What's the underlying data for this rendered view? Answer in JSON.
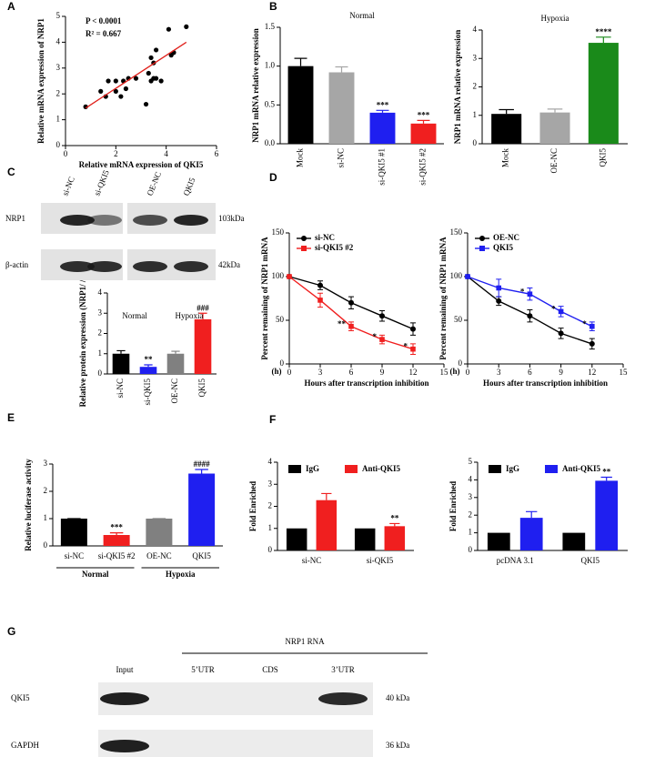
{
  "chart_data": [
    {
      "type": "scatter",
      "panel": "A",
      "xlabel": "Relative mRNA expression  of QKI5",
      "ylabel": "Relative mRNA expression of NRP1",
      "annotations": [
        "P < 0.0001",
        "R² = 0.667"
      ],
      "x": [
        0.8,
        1.4,
        1.6,
        1.7,
        2.0,
        2.0,
        2.2,
        2.3,
        2.4,
        2.5,
        2.8,
        3.2,
        3.3,
        3.4,
        3.5,
        3.5,
        3.6,
        3.8,
        4.1,
        4.2,
        4.3,
        4.8,
        3.6,
        3.4
      ],
      "values": [
        1.5,
        2.1,
        1.9,
        2.5,
        2.5,
        2.1,
        1.9,
        2.5,
        2.2,
        2.6,
        2.6,
        1.6,
        2.8,
        3.4,
        3.2,
        2.6,
        3.7,
        2.5,
        4.5,
        3.5,
        3.6,
        4.6,
        2.6,
        2.5
      ],
      "color": "#000000",
      "fit": {
        "x": [
          0.8,
          4.8
        ],
        "values": [
          1.45,
          4.0
        ],
        "color": "#e0201b"
      },
      "xlim": [
        0,
        6
      ],
      "xticks": [
        0,
        2,
        4,
        6
      ],
      "ylim": [
        0,
        5
      ],
      "yticks": [
        0,
        1,
        2,
        3,
        4,
        5
      ]
    },
    {
      "type": "bar",
      "panel": "B",
      "title": "Normal",
      "ylabel": "NRP1 mRNA relative expression",
      "rotate_labels": true,
      "categories": [
        "Mock",
        "si-NC",
        "si-QKI5 #1",
        "si-QKI5 #2"
      ],
      "values": [
        1.0,
        0.92,
        0.4,
        0.26
      ],
      "errors": [
        0.1,
        0.07,
        0.03,
        0.04
      ],
      "colors": [
        "#000000",
        "#a6a6a6",
        "#1f1ff0",
        "#f01f1f"
      ],
      "significance": [
        null,
        null,
        "***",
        "***"
      ],
      "ylim": [
        0,
        1.5
      ],
      "yticks": [
        {
          "value": 0,
          "label": "0.0"
        },
        0.5,
        {
          "value": 1,
          "label": "1.0"
        },
        1.5
      ]
    },
    {
      "type": "bar",
      "title": "Hypoxia",
      "ylabel": "NRP1 mRNA relative expression",
      "rotate_labels": true,
      "categories": [
        "Mock",
        "OE-NC",
        "QKI5"
      ],
      "values": [
        1.05,
        1.1,
        3.55
      ],
      "errors": [
        0.15,
        0.12,
        0.2
      ],
      "colors": [
        "#000000",
        "#a6a6a6",
        "#1a8a1a"
      ],
      "significance": [
        null,
        null,
        "****"
      ],
      "ylim": [
        0,
        4
      ],
      "yticks": [
        0,
        1,
        2,
        3,
        4
      ]
    },
    {
      "type": "bar",
      "ylabel": "Relative protein expression (NRP1/ /actin)",
      "rotate_labels": true,
      "categories": [
        "si-NC",
        "si-QKI5",
        "OE-NC",
        "QKI5"
      ],
      "values": [
        1.0,
        0.35,
        1.0,
        2.7
      ],
      "errors": [
        0.15,
        0.1,
        0.12,
        0.3
      ],
      "colors": [
        "#000000",
        "#1f1ff0",
        "#808080",
        "#f01f1f"
      ],
      "significance": [
        null,
        "**",
        null,
        "###"
      ],
      "groups": [
        "Normal",
        "Hypoxia"
      ],
      "ylim": [
        0,
        4
      ],
      "yticks": [
        0,
        1,
        2,
        3,
        4
      ]
    },
    {
      "type": "line",
      "panel": "D",
      "xlabel": "Hours after transcription inhibition",
      "ylabel": "Percent remaining of NRP1 mRNA",
      "x_unit": "(h)",
      "x": [
        0,
        3,
        6,
        9,
        12
      ],
      "series": [
        {
          "name": "si-NC",
          "color": "#000000",
          "marker": "circle",
          "values": [
            100,
            90,
            70,
            55,
            40
          ],
          "errors": [
            0,
            5,
            7,
            6,
            7
          ]
        },
        {
          "name": "si-QKI5 #2",
          "color": "#f01f1f",
          "marker": "square",
          "values": [
            100,
            73,
            43,
            28,
            17
          ],
          "errors": [
            0,
            8,
            5,
            5,
            6
          ],
          "significance": [
            null,
            null,
            "**",
            "*",
            "*"
          ]
        }
      ],
      "xlim": [
        0,
        15
      ],
      "xticks": [
        0,
        3,
        6,
        9,
        12,
        15
      ],
      "ylim": [
        0,
        150
      ],
      "yticks": [
        0,
        50,
        100,
        150
      ]
    },
    {
      "type": "line",
      "xlabel": "Hours after transcription inhibition",
      "ylabel": "Percent remaining of NRP1 mRNA",
      "x_unit": "(h)",
      "x": [
        0,
        3,
        6,
        9,
        12
      ],
      "series": [
        {
          "name": "OE-NC",
          "color": "#000000",
          "marker": "circle",
          "values": [
            100,
            72,
            55,
            35,
            23
          ],
          "errors": [
            0,
            5,
            7,
            6,
            6
          ]
        },
        {
          "name": "QKI5",
          "color": "#1f1ff0",
          "marker": "square",
          "values": [
            100,
            87,
            80,
            60,
            43
          ],
          "errors": [
            0,
            10,
            7,
            6,
            5
          ],
          "significance": [
            null,
            null,
            "*",
            "*",
            "*"
          ]
        }
      ],
      "xlim": [
        0,
        15
      ],
      "xticks": [
        0,
        3,
        6,
        9,
        12,
        15
      ],
      "ylim": [
        0,
        150
      ],
      "yticks": [
        0,
        50,
        100,
        150
      ]
    },
    {
      "type": "bar",
      "panel": "E",
      "ylabel": "Relative luciferase activity",
      "categories": [
        "si-NC",
        "si-QKI5 #2",
        "OE-NC",
        "QKI5"
      ],
      "values": [
        1.0,
        0.4,
        1.0,
        2.65
      ],
      "errors": [
        0,
        0.08,
        0,
        0.15
      ],
      "colors": [
        "#000000",
        "#f01f1f",
        "#808080",
        "#1f1ff0"
      ],
      "significance": [
        null,
        "***",
        null,
        "####"
      ],
      "groups": [
        "Normal",
        "Hypoxia"
      ],
      "ylim": [
        0,
        3
      ],
      "yticks": [
        0,
        1,
        2,
        3
      ]
    },
    {
      "type": "bar",
      "panel": "F",
      "ylabel": "Fold Enriched",
      "categories": [
        "si-NC",
        "si-QKI5"
      ],
      "series": [
        {
          "name": "IgG",
          "color": "#000000",
          "values": [
            1,
            1
          ]
        },
        {
          "name": "Anti-QKI5",
          "color": "#f01f1f",
          "values": [
            2.28,
            1.1
          ],
          "errors": [
            0.3,
            0.12
          ],
          "significance": [
            null,
            "**"
          ]
        }
      ],
      "ylim": [
        0,
        4
      ],
      "yticks": [
        0,
        1,
        2,
        3,
        4
      ]
    },
    {
      "type": "bar",
      "ylabel": "Fold Enriched",
      "categories": [
        "pcDNA 3.1",
        "QKI5"
      ],
      "series": [
        {
          "name": "IgG",
          "color": "#000000",
          "values": [
            1,
            1
          ]
        },
        {
          "name": "Anti-QKI5",
          "color": "#1f1ff0",
          "values": [
            1.85,
            3.95
          ],
          "errors": [
            0.35,
            0.2
          ],
          "significance": [
            null,
            "**"
          ]
        }
      ],
      "ylim": [
        0,
        5
      ],
      "yticks": [
        0,
        1,
        2,
        3,
        4,
        5
      ]
    }
  ],
  "blots": [
    {
      "panel": "C",
      "lanes": [
        "si-NC",
        "si-QKI5",
        "OE-NC",
        "QKI5"
      ],
      "rows": [
        "NRP1",
        "β-actin"
      ],
      "sizes": [
        "103kDa",
        "42kDa"
      ]
    },
    {
      "panel": "G",
      "title": "NRP1 RNA",
      "lanes": [
        "Input",
        "5’UTR",
        "CDS",
        "3’UTR"
      ],
      "rows": [
        "QKI5",
        "GAPDH"
      ],
      "sizes": [
        "40 kDa",
        "36 kDa"
      ]
    }
  ]
}
